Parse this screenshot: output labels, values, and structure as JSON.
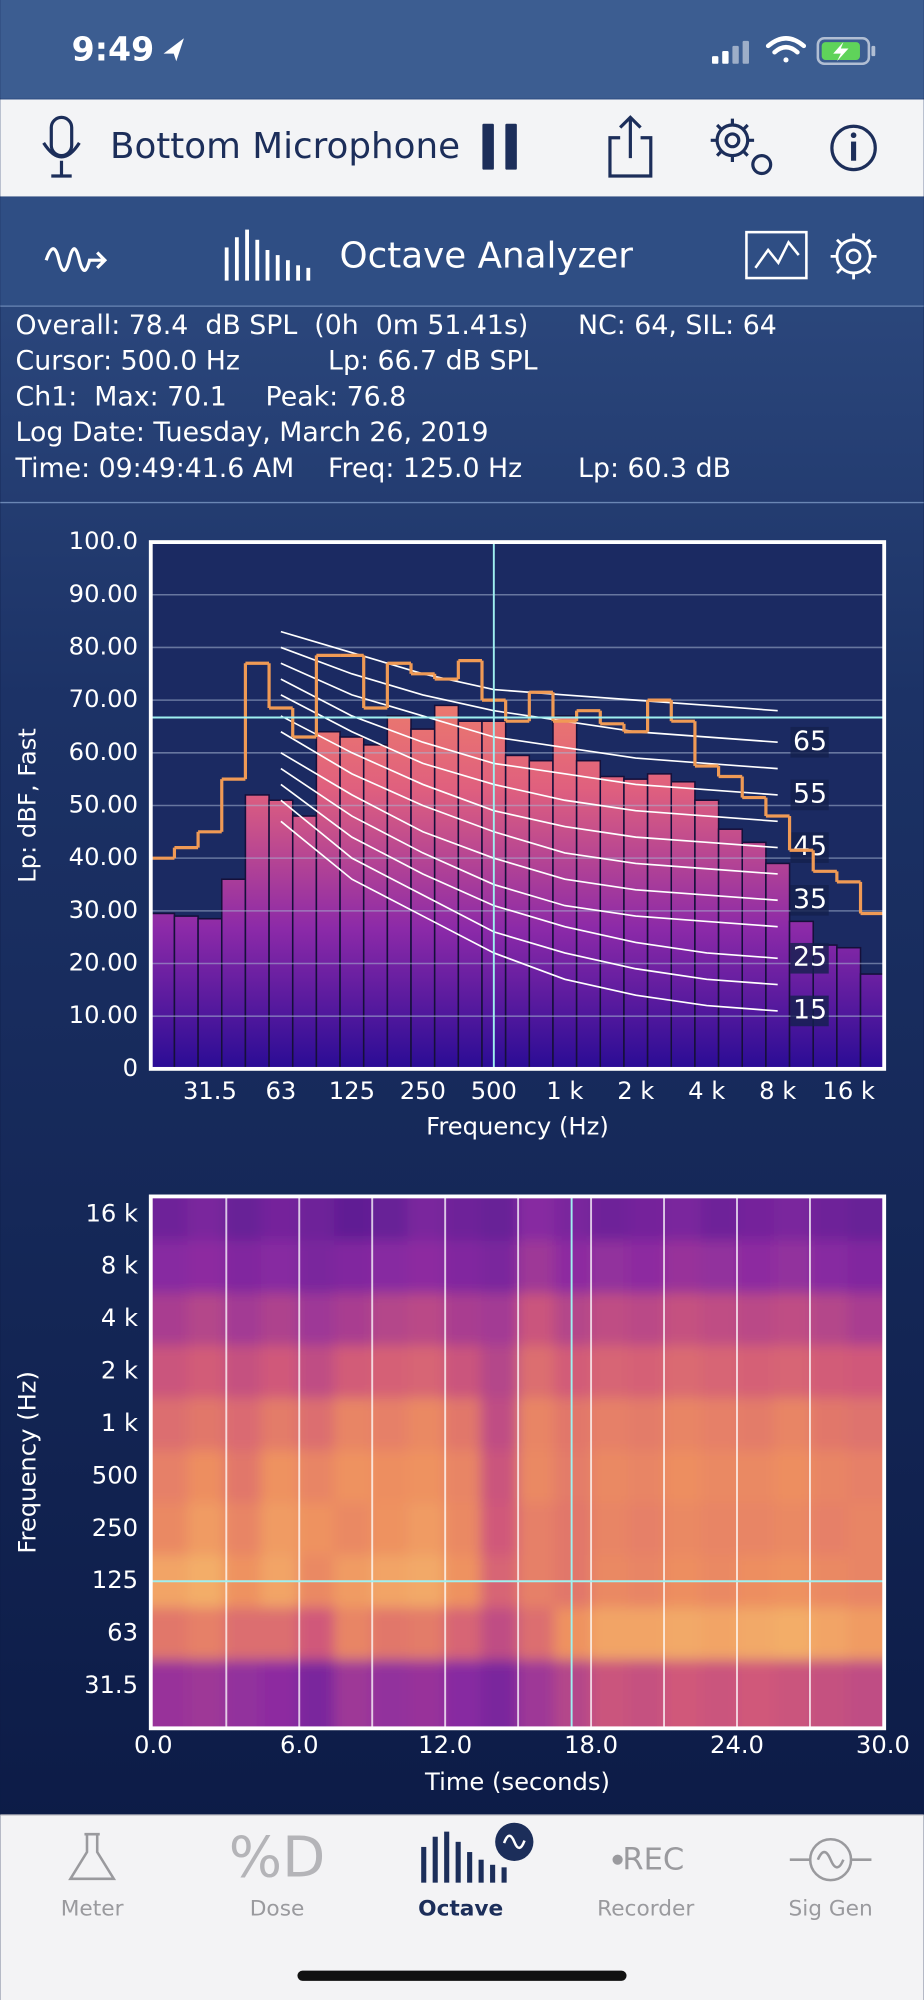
{
  "status_bar": {
    "time": "9:49"
  },
  "toolbar": {
    "input": "Bottom Microphone"
  },
  "header": {
    "title": "Octave Analyzer"
  },
  "info": [
    [
      "Overall: 78.4  dB SPL  (0h  0m 51.41s)",
      "NC: 64, SIL: 64"
    ],
    [
      "Cursor: 500.0 Hz",
      "Lp: 66.7 dB SPL"
    ],
    [
      "Ch1:  Max: 70.1",
      "Peak: 76.8"
    ],
    [
      "Log Date: Tuesday, March 26, 2019"
    ],
    [
      "Time: 09:49:41.6 AM",
      "Freq: 125.0 Hz",
      "Lp: 60.3 dB"
    ]
  ],
  "chart_data": [
    {
      "type": "bar",
      "y_label": "Lp: dBF, Fast",
      "x_label": "Frequency (Hz)",
      "categories": [
        null,
        null,
        "31.5",
        null,
        null,
        "63",
        null,
        null,
        "125",
        null,
        null,
        "250",
        null,
        null,
        "500",
        null,
        null,
        "1 k",
        null,
        null,
        "2 k",
        null,
        null,
        "4 k",
        null,
        null,
        "8 k",
        null,
        null,
        "16 k",
        null
      ],
      "values": [
        29.5,
        29,
        28.5,
        36,
        52,
        51,
        48,
        64,
        63,
        61.5,
        67,
        64.5,
        69,
        66,
        66,
        59.5,
        58.5,
        67,
        58.5,
        55.5,
        55,
        56,
        54.5,
        51,
        45.5,
        43,
        39,
        28,
        23.5,
        23,
        18
      ],
      "bar_colors": [
        "#2a0c95",
        "#8c2aa8",
        "#e0607e",
        "#f28a62"
      ],
      "max_hold": {
        "color": "#f09a55",
        "values": [
          40,
          42,
          45,
          55,
          77,
          68.5,
          63,
          78.5,
          78.5,
          68.5,
          77,
          75,
          74,
          77.5,
          70,
          66,
          71.5,
          66,
          68,
          65.5,
          64,
          70,
          66,
          57.5,
          55.5,
          51.5,
          48,
          41.5,
          37.5,
          35.5,
          29.5
        ]
      },
      "nc_curves": [
        {
          "label": 15,
          "values": [
            null,
            47,
            36,
            29,
            22,
            17,
            14,
            12,
            11,
            null
          ]
        },
        {
          "values": [
            null,
            51,
            40,
            33,
            26,
            22,
            19,
            17,
            16,
            null
          ]
        },
        {
          "label": 25,
          "values": [
            null,
            54,
            44,
            37,
            31,
            27,
            24,
            22,
            21,
            null
          ]
        },
        {
          "values": [
            null,
            57,
            48,
            41,
            35,
            31,
            29,
            28,
            27,
            null
          ]
        },
        {
          "label": 35,
          "values": [
            null,
            60,
            52,
            45,
            40,
            36,
            34,
            33,
            32,
            null
          ]
        },
        {
          "values": [
            null,
            64,
            56,
            50,
            45,
            41,
            39,
            38,
            37,
            null
          ]
        },
        {
          "label": 45,
          "values": [
            null,
            67,
            60,
            54,
            49,
            46,
            44,
            43,
            42,
            null
          ]
        },
        {
          "values": [
            null,
            71,
            64,
            58,
            54,
            51,
            49,
            48,
            47,
            null
          ]
        },
        {
          "label": 55,
          "values": [
            null,
            74,
            67,
            62,
            58,
            56,
            54,
            53,
            52,
            null
          ]
        },
        {
          "values": [
            null,
            77,
            71,
            67,
            63,
            61,
            59,
            58,
            57,
            null
          ]
        },
        {
          "label": 65,
          "values": [
            null,
            80,
            75,
            71,
            68,
            66,
            64,
            63,
            62,
            null
          ]
        },
        {
          "values": [
            null,
            83,
            79,
            75,
            72,
            71,
            70,
            69,
            68,
            null
          ]
        }
      ],
      "cursor": {
        "x": "500",
        "y": 66.7
      },
      "ylim": [
        0,
        100
      ],
      "yticks": [
        0,
        {
          "value": 10,
          "label": "10.00"
        },
        {
          "value": 20,
          "label": "20.00"
        },
        {
          "value": 30,
          "label": "30.00"
        },
        {
          "value": 40,
          "label": "40.00"
        },
        {
          "value": 50,
          "label": "50.00"
        },
        {
          "value": 60,
          "label": "60.00"
        },
        {
          "value": 70,
          "label": "70.00"
        },
        {
          "value": 80,
          "label": "80.00"
        },
        {
          "value": 90,
          "label": "90.00"
        },
        {
          "value": 100,
          "label": "100.0"
        }
      ],
      "grid": true
    },
    {
      "type": "heatmap",
      "y_label": "Frequency (Hz)",
      "x_label": "Time (seconds)",
      "categories": [
        "16 k",
        "8 k",
        "4 k",
        "2 k",
        "1 k",
        "500",
        "250",
        "125",
        "63",
        "31.5"
      ],
      "xlim": [
        0,
        30
      ],
      "xticks": [
        {
          "value": 0,
          "label": "0.0"
        },
        {
          "value": 6,
          "label": "6.0"
        },
        {
          "value": 12,
          "label": "12.0"
        },
        {
          "value": 18,
          "label": "18.0"
        },
        {
          "value": 24,
          "label": "24.0"
        },
        {
          "value": 30,
          "label": "30.0"
        }
      ],
      "xgrid": [
        3,
        6,
        9,
        12,
        15,
        18,
        21,
        24,
        27
      ],
      "zlim": [
        20,
        70
      ],
      "colormap": [
        "#3c1488",
        "#8a2aa2",
        "#d0587a",
        "#ee9060",
        "#f8c870"
      ],
      "z": [
        [
          28,
          30,
          27,
          29,
          28,
          26,
          27,
          30,
          28,
          27,
          32,
          30,
          28,
          29,
          30,
          28,
          29,
          30,
          28,
          27
        ],
        [
          32,
          33,
          31,
          32,
          30,
          31,
          32,
          33,
          31,
          30,
          36,
          33,
          34,
          33,
          35,
          34,
          33,
          34,
          32,
          31
        ],
        [
          38,
          40,
          37,
          39,
          36,
          38,
          40,
          41,
          38,
          37,
          44,
          40,
          42,
          41,
          43,
          42,
          41,
          42,
          40,
          38
        ],
        [
          44,
          46,
          43,
          45,
          42,
          46,
          47,
          48,
          44,
          40,
          50,
          46,
          48,
          47,
          49,
          48,
          47,
          48,
          46,
          45
        ],
        [
          50,
          52,
          49,
          53,
          50,
          55,
          54,
          56,
          52,
          42,
          55,
          52,
          54,
          53,
          55,
          54,
          53,
          55,
          52,
          51
        ],
        [
          54,
          57,
          52,
          58,
          55,
          58,
          57,
          58,
          55,
          44,
          56,
          53,
          56,
          55,
          57,
          56,
          56,
          57,
          55,
          54
        ],
        [
          56,
          60,
          55,
          60,
          58,
          56,
          58,
          60,
          56,
          45,
          54,
          52,
          55,
          54,
          56,
          55,
          55,
          56,
          54,
          55
        ],
        [
          62,
          64,
          58,
          62,
          56,
          60,
          62,
          63,
          58,
          48,
          54,
          52,
          56,
          55,
          57,
          56,
          57,
          58,
          56,
          55
        ],
        [
          52,
          54,
          50,
          50,
          45,
          55,
          52,
          53,
          48,
          42,
          50,
          58,
          62,
          62,
          63,
          62,
          63,
          64,
          62,
          60
        ],
        [
          35,
          36,
          34,
          33,
          30,
          36,
          34,
          35,
          32,
          30,
          36,
          40,
          44,
          43,
          45,
          44,
          45,
          44,
          43,
          42
        ]
      ],
      "cursor": {
        "x": 17.2,
        "y": "125"
      }
    }
  ],
  "tab_bar": {
    "tabs": [
      {
        "label": "Meter"
      },
      {
        "label": "Dose",
        "icon_text": "%D"
      },
      {
        "label": "Octave"
      },
      {
        "label": "Recorder",
        "icon_text": "REC"
      },
      {
        "label": "Sig Gen"
      }
    ],
    "active": 2
  }
}
